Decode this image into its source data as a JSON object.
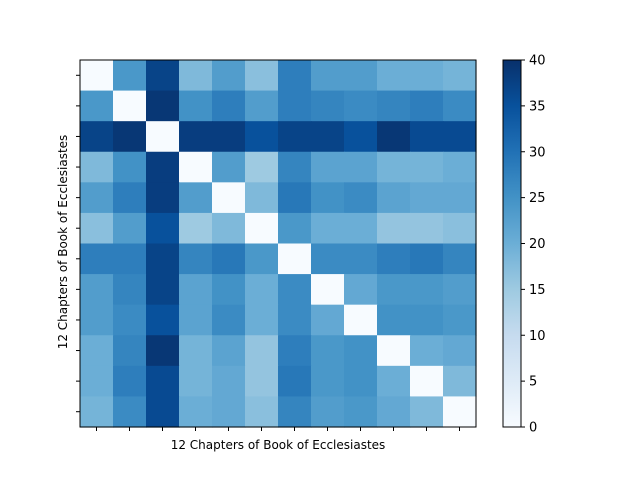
{
  "chart_data": {
    "type": "heatmap",
    "xlabel": "12 Chapters of Book of Ecclesiastes",
    "ylabel": "12 Chapters of Book of Ecclesiastes",
    "colormap": "Blues",
    "vmin": 0,
    "vmax": 40,
    "colorbar_ticks": [
      "0",
      "5",
      "10",
      "15",
      "20",
      "25",
      "30",
      "35",
      "40"
    ],
    "matrix": [
      [
        0,
        24,
        37,
        18,
        23,
        17,
        28,
        23,
        23,
        20,
        20,
        19
      ],
      [
        24,
        0,
        39,
        25,
        28,
        23,
        28,
        27,
        26,
        27,
        28,
        26
      ],
      [
        37,
        39,
        0,
        38,
        38,
        35,
        37,
        37,
        35,
        39,
        36,
        36
      ],
      [
        18,
        25,
        38,
        0,
        23,
        15,
        27,
        22,
        22,
        19,
        19,
        20
      ],
      [
        23,
        28,
        38,
        23,
        0,
        18,
        29,
        25,
        26,
        22,
        21,
        21
      ],
      [
        17,
        23,
        35,
        15,
        18,
        0,
        24,
        20,
        20,
        16,
        16,
        17
      ],
      [
        28,
        28,
        37,
        27,
        29,
        24,
        0,
        26,
        26,
        28,
        29,
        27
      ],
      [
        23,
        27,
        37,
        22,
        25,
        20,
        26,
        0,
        21,
        24,
        24,
        23
      ],
      [
        23,
        26,
        35,
        22,
        26,
        20,
        26,
        21,
        0,
        25,
        25,
        24
      ],
      [
        20,
        27,
        39,
        19,
        22,
        16,
        28,
        24,
        25,
        0,
        20,
        21
      ],
      [
        20,
        28,
        36,
        19,
        21,
        16,
        29,
        24,
        25,
        20,
        0,
        18
      ],
      [
        19,
        26,
        36,
        20,
        21,
        17,
        27,
        23,
        24,
        21,
        18,
        0
      ]
    ]
  }
}
